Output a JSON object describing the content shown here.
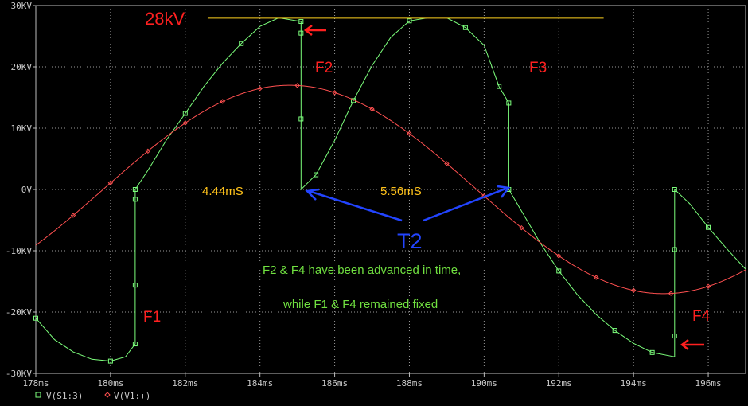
{
  "chart_data": {
    "type": "line",
    "title": "",
    "xlabel": "",
    "ylabel": "",
    "xlim": [
      178,
      197
    ],
    "ylim": [
      -30,
      30
    ],
    "x_unit": "ms",
    "y_unit": "kV",
    "grid": true,
    "x_ticks": [
      {
        "value": 178,
        "label": "178ms"
      },
      {
        "value": 180,
        "label": "180ms"
      },
      {
        "value": 182,
        "label": "182ms"
      },
      {
        "value": 184,
        "label": "184ms"
      },
      {
        "value": 186,
        "label": "186ms"
      },
      {
        "value": 188,
        "label": "188ms"
      },
      {
        "value": 190,
        "label": "190ms"
      },
      {
        "value": 192,
        "label": "192ms"
      },
      {
        "value": 194,
        "label": "194ms"
      },
      {
        "value": 196,
        "label": "196ms"
      }
    ],
    "y_ticks": [
      {
        "value": 30,
        "label": "30KV"
      },
      {
        "value": 20,
        "label": "20KV"
      },
      {
        "value": 10,
        "label": "10KV"
      },
      {
        "value": 0,
        "label": "0V"
      },
      {
        "value": -10,
        "label": "-10KV"
      },
      {
        "value": -20,
        "label": "-20KV"
      },
      {
        "value": -30,
        "label": "-30KV"
      }
    ],
    "series": [
      {
        "name": "V(S1:3)",
        "color": "#7cff7c",
        "marker": "square",
        "x": [
          178.0,
          178.5,
          179.0,
          179.5,
          180.0,
          180.4,
          180.66,
          180.66,
          180.66,
          180.66,
          180.66,
          181.0,
          181.5,
          182.0,
          182.5,
          183.0,
          183.5,
          184.0,
          184.5,
          185.1,
          185.1,
          185.1,
          185.1,
          185.1,
          185.5,
          186.0,
          186.5,
          187.0,
          187.5,
          188.0,
          188.5,
          189.0,
          189.5,
          190.0,
          190.4,
          190.66,
          190.66,
          190.66,
          190.66,
          191.0,
          191.5,
          192.0,
          192.5,
          193.0,
          193.5,
          194.0,
          194.5,
          195.1,
          195.1,
          195.1,
          195.1,
          195.1,
          195.5,
          196.0,
          196.5,
          197.0
        ],
        "y": [
          -21,
          -24.5,
          -26.5,
          -27.7,
          -28.0,
          -27.3,
          -25.2,
          -15.6,
          -1.6,
          0,
          0,
          3.1,
          8.1,
          12.4,
          16.8,
          20.6,
          23.8,
          26.6,
          28.0,
          27.4,
          25.5,
          11.5,
          0,
          0,
          2.4,
          8.0,
          14.5,
          20.2,
          24.8,
          27.5,
          28.0,
          28.0,
          26.4,
          23.5,
          16.8,
          14.1,
          0.3,
          0,
          0,
          -3.5,
          -8.7,
          -13.3,
          -17.2,
          -20.4,
          -23.0,
          -25.1,
          -26.6,
          -27.3,
          -23.9,
          -9.8,
          0,
          0,
          -2.3,
          -6.2,
          -9.7,
          -13.0
        ]
      },
      {
        "name": "V(V1:+)",
        "color": "#ff5050",
        "marker": "diamond",
        "sine": {
          "amplitude": 17,
          "frequency_hz": 50,
          "zero_crossing_ms": 179.8,
          "samples_step_ms": 0.05
        },
        "marker_step_ms": 1.0
      }
    ],
    "reference_line": {
      "label": "28kV",
      "y": 28,
      "x_from": 182.6,
      "x_to": 193.2,
      "color": "#ffd21f"
    },
    "legend": {
      "placement": "bottom-left",
      "entries": [
        "V(S1:3)",
        "V(V1:+)"
      ]
    }
  },
  "annotations": {
    "label_28kv": "28kV",
    "f1": "F1",
    "f2": "F2",
    "f3": "F3",
    "f4": "F4",
    "t2": "T2",
    "time_left": "4.44mS",
    "time_right": "5.56mS",
    "note_line1": "F2 & F4 have been advanced in time,",
    "note_line2": "while F1 & F4 remained fixed",
    "colors": {
      "red": "#ff2020",
      "yellow": "#ffc21a",
      "green": "#70e040",
      "blue": "#2244ff",
      "arrow_red": "#ff2020"
    }
  }
}
